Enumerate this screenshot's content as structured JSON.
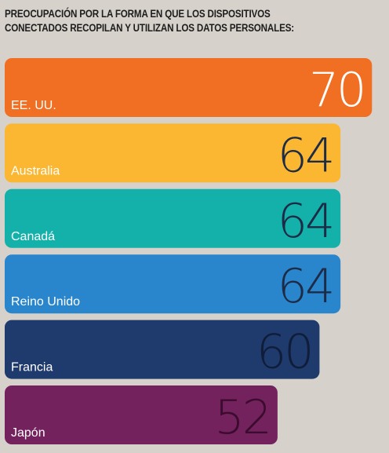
{
  "header": {
    "title_line1": "PREOCUPACIÓN POR LA FORMA EN QUE LOS DISPOSITIVOS",
    "title_line2": "CONECTADOS RECOPILAN Y UTILIZAN LOS DATOS PERSONALES:"
  },
  "chart_data": {
    "type": "bar",
    "orientation": "horizontal",
    "categories": [
      "EE. UU.",
      "Australia",
      "Canadá",
      "Reino Unido",
      "Francia",
      "Japón"
    ],
    "values": [
      70,
      64,
      64,
      64,
      60,
      52
    ],
    "value_labels": [
      "70",
      "64",
      "64",
      "64",
      "60",
      "52"
    ],
    "bar_colors": [
      "#f06f22",
      "#fbb731",
      "#14b1aa",
      "#2a86cc",
      "#1f3a6c",
      "#74225d"
    ],
    "value_label_colors": [
      "#ffffff",
      "#1d2b47",
      "#1d2b47",
      "#1d2b47",
      "#0f1d38",
      "#3b0c2e"
    ],
    "grid": false,
    "legend": "none"
  }
}
